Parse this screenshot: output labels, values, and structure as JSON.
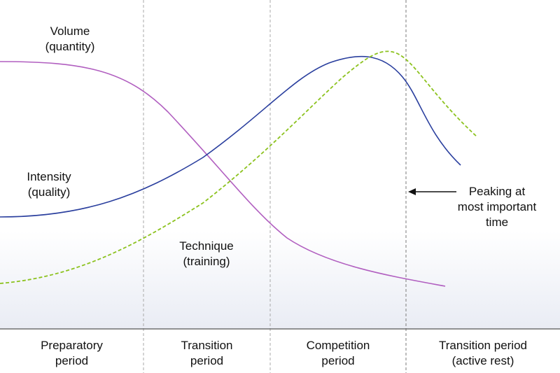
{
  "curves": {
    "volume": {
      "line1": "Volume",
      "line2": "(quantity)",
      "color": "#b15fc0"
    },
    "intensity": {
      "line1": "Intensity",
      "line2": "(quality)",
      "color": "#2a3f9e"
    },
    "technique": {
      "line1": "Technique",
      "line2": "(training)",
      "color": "#8cc21e"
    }
  },
  "annotation": {
    "line1": "Peaking at",
    "line2": "most important",
    "line3": "time"
  },
  "periods": [
    {
      "line1": "Preparatory",
      "line2": "period"
    },
    {
      "line1": "Transition",
      "line2": "period"
    },
    {
      "line1": "Competition",
      "line2": "period"
    },
    {
      "line1": "Transition period",
      "line2": "(active rest)"
    }
  ],
  "colors": {
    "divider": "#a9a9a9",
    "baseline": "#555555",
    "shade": "#eef0f6"
  }
}
